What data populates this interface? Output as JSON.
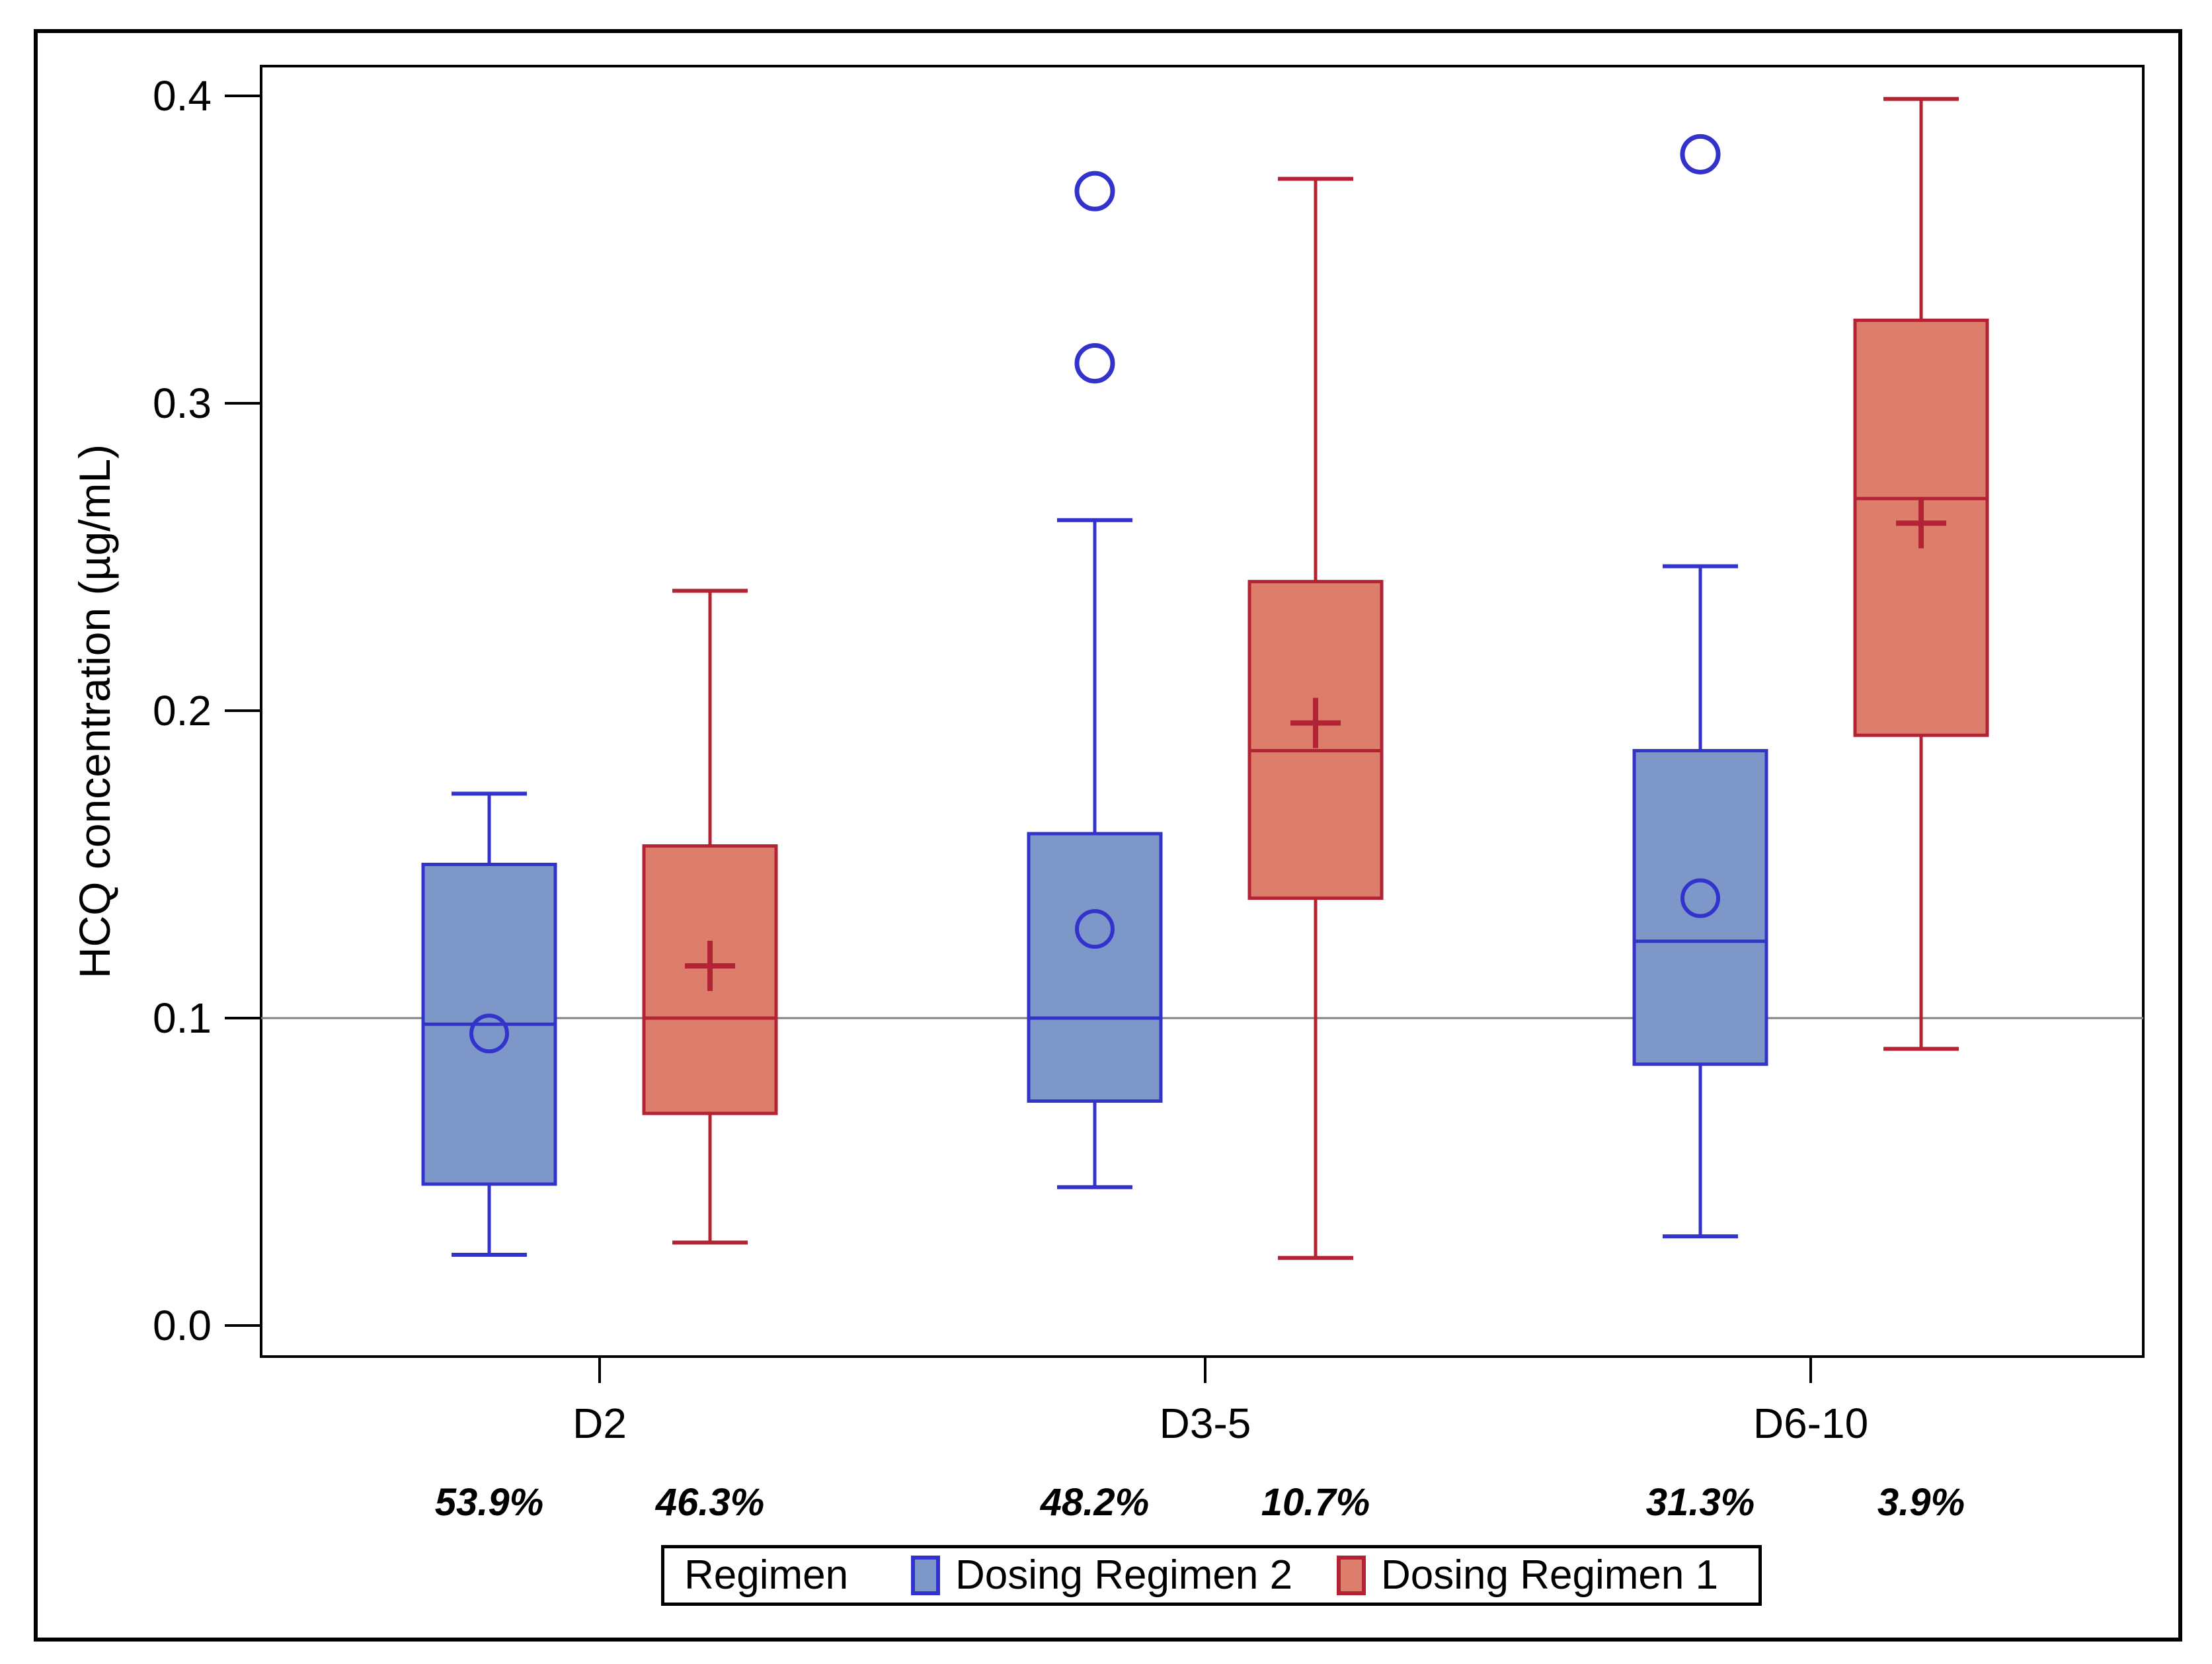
{
  "figure": {
    "background": "#ffffff",
    "outer_border_color": "#000000",
    "axis_color": "#000000",
    "refline_color": "#828282"
  },
  "chart_data": {
    "type": "boxplot",
    "title": "",
    "ylabel": "HCQ concentration (µg/mL)",
    "xlabel": "",
    "yticks": [
      "0.0",
      "0.1",
      "0.2",
      "0.3",
      "0.4"
    ],
    "ylim": [
      -0.012,
      0.42
    ],
    "refline_y": 0.1,
    "grid": false,
    "categories": [
      "D2",
      "D3-5",
      "D6-10"
    ],
    "series": [
      {
        "name": "Dosing Regimen 2",
        "mean_marker": "circle",
        "fill": "#7e97c9",
        "stroke": "#3333cc",
        "boxes": [
          {
            "category": "D2",
            "whisker_low": 0.023,
            "q1": 0.046,
            "median": 0.098,
            "q3": 0.15,
            "whisker_high": 0.173,
            "mean": 0.095,
            "outliers": [],
            "pct_label": "53.9%"
          },
          {
            "category": "D3-5",
            "whisker_low": 0.045,
            "q1": 0.073,
            "median": 0.1,
            "q3": 0.16,
            "whisker_high": 0.262,
            "mean": 0.129,
            "outliers": [
              0.313,
              0.369
            ],
            "pct_label": "48.2%"
          },
          {
            "category": "D6-10",
            "whisker_low": 0.029,
            "q1": 0.085,
            "median": 0.125,
            "q3": 0.187,
            "whisker_high": 0.247,
            "mean": 0.139,
            "outliers": [
              0.381
            ],
            "pct_label": "31.3%"
          }
        ]
      },
      {
        "name": "Dosing Regimen 1",
        "mean_marker": "plus",
        "fill": "#dd7e6c",
        "stroke": "#b22433",
        "boxes": [
          {
            "category": "D2",
            "whisker_low": 0.027,
            "q1": 0.069,
            "median": 0.1,
            "q3": 0.156,
            "whisker_high": 0.239,
            "mean": 0.117,
            "outliers": [],
            "pct_label": "46.3%"
          },
          {
            "category": "D3-5",
            "whisker_low": 0.022,
            "q1": 0.139,
            "median": 0.187,
            "q3": 0.242,
            "whisker_high": 0.373,
            "mean": 0.196,
            "outliers": [],
            "pct_label": "10.7%"
          },
          {
            "category": "D6-10",
            "whisker_low": 0.09,
            "q1": 0.192,
            "median": 0.269,
            "q3": 0.327,
            "whisker_high": 0.399,
            "mean": 0.261,
            "outliers": [],
            "pct_label": "3.9%"
          }
        ]
      }
    ],
    "legend": {
      "position": "bottom",
      "title": "Regimen",
      "entries": [
        "Dosing Regimen 2",
        "Dosing Regimen 1"
      ]
    }
  }
}
